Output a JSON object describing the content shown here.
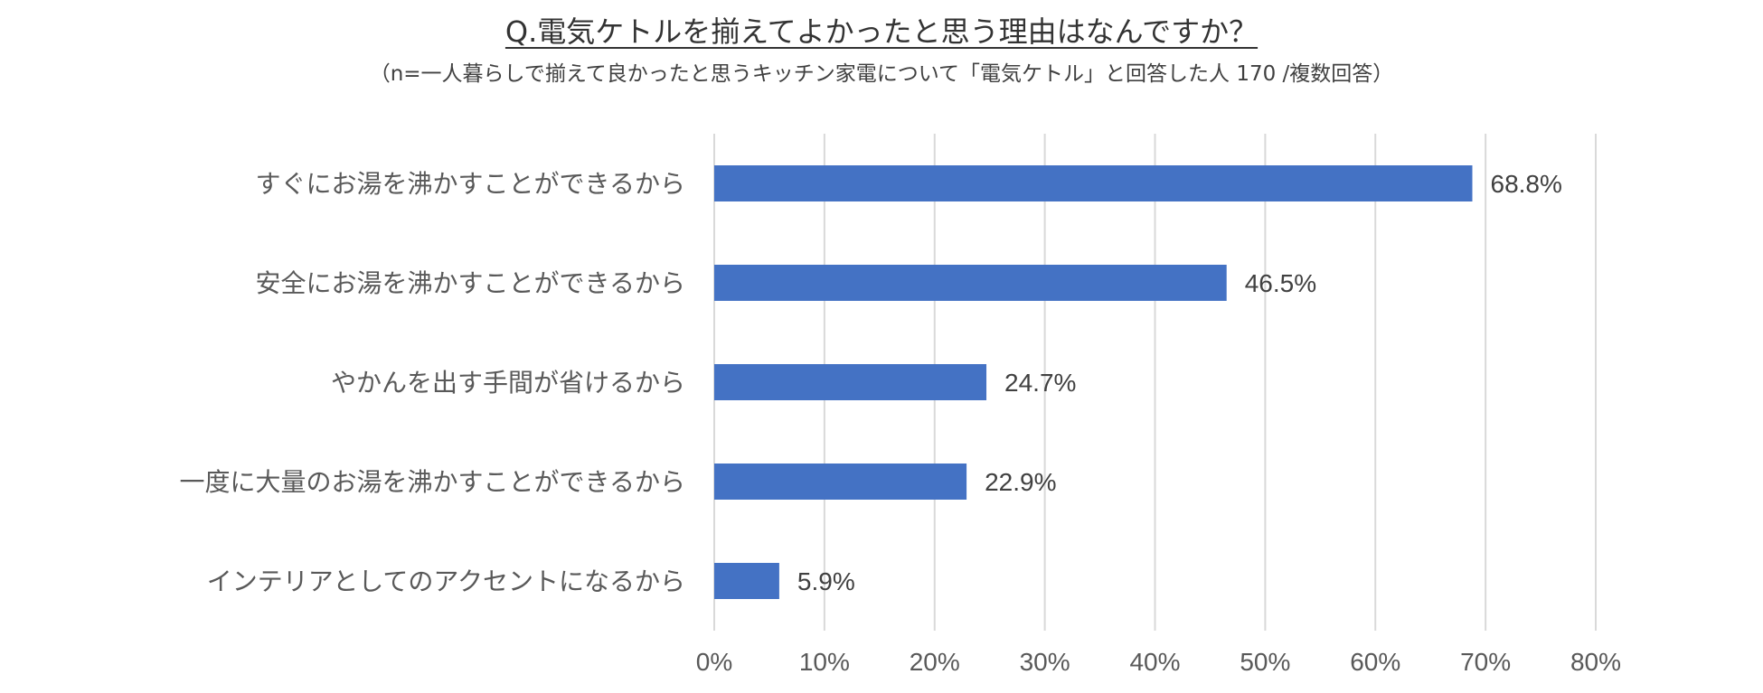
{
  "chart_data": {
    "type": "bar",
    "orientation": "horizontal",
    "title": "Q.電気ケトルを揃えてよかったと思う理由はなんですか？",
    "subtitle": "（n=一人暮らしで揃えて良かったと思うキッチン家電について「電気ケトル」と回答した人 170 /複数回答）",
    "categories": [
      "すぐにお湯を沸かすことができるから",
      "安全にお湯を沸かすことができるから",
      "やかんを出す手間が省けるから",
      "一度に大量のお湯を沸かすことができるから",
      "インテリアとしてのアクセントになるから"
    ],
    "values": [
      68.8,
      46.5,
      24.7,
      22.9,
      5.9
    ],
    "data_labels": [
      "68.8%",
      "46.5%",
      "24.7%",
      "22.9%",
      "5.9%"
    ],
    "xlim": [
      0,
      80
    ],
    "x_ticks": [
      0,
      10,
      20,
      30,
      40,
      50,
      60,
      70,
      80
    ],
    "x_tick_labels": [
      "0%",
      "10%",
      "20%",
      "30%",
      "40%",
      "50%",
      "60%",
      "70%",
      "80%"
    ],
    "grid": "vertical",
    "legend": "none",
    "bar_color": "#4472C4",
    "grid_color": "#D9D9D9"
  }
}
